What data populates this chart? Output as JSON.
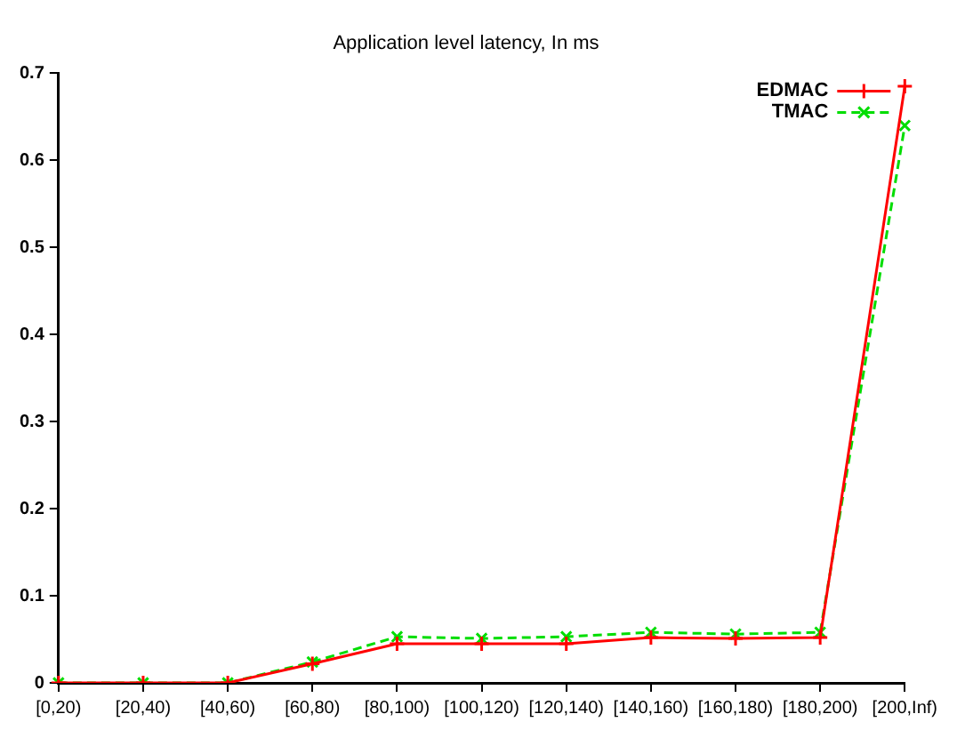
{
  "chart_data": {
    "type": "line",
    "title": "Application level latency, In ms",
    "categories": [
      "[0,20)",
      "[20,40)",
      "[40,60)",
      "[60,80)",
      "[80,100)",
      "[100,120)",
      "[120,140)",
      "[140,160)",
      "[160,180)",
      "[180,200)",
      "[200,Inf)"
    ],
    "series": [
      {
        "name": "EDMAC",
        "color": "#ff0000",
        "marker": "cross",
        "line_style": "solid",
        "values": [
          0,
          0,
          0,
          0.022,
          0.045,
          0.045,
          0.045,
          0.052,
          0.051,
          0.052,
          0.685
        ]
      },
      {
        "name": "TMAC",
        "color": "#00dd00",
        "marker": "cross",
        "line_style": "dashed",
        "values": [
          0,
          0,
          0,
          0.024,
          0.053,
          0.051,
          0.053,
          0.058,
          0.056,
          0.058,
          0.64
        ]
      }
    ],
    "ylim": [
      0,
      0.7
    ],
    "yticks": [
      0,
      0.1,
      0.2,
      0.3,
      0.4,
      0.5,
      0.6,
      0.7
    ],
    "grid": false,
    "legend": "top right"
  }
}
